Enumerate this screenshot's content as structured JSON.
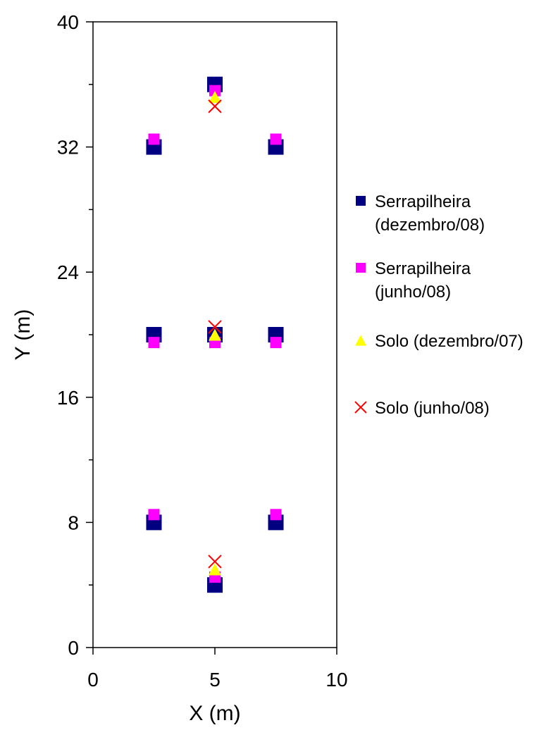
{
  "chart_data": {
    "type": "scatter",
    "title": "",
    "xlabel": "X (m)",
    "ylabel": "Y (m)",
    "xlim": [
      0,
      10
    ],
    "ylim": [
      0,
      40
    ],
    "x_ticks": [
      "0",
      "5",
      "10"
    ],
    "y_ticks": [
      "0",
      "8",
      "16",
      "24",
      "32",
      "40"
    ],
    "grid": false,
    "legend_position": "right",
    "series": [
      {
        "name": "Serrapilheira (dezembro/08)",
        "legend_lines": [
          "Serrapilheira",
          "(dezembro/08)"
        ],
        "marker": "square",
        "color": "#000080",
        "points": [
          {
            "x": 2.5,
            "y": 8
          },
          {
            "x": 7.5,
            "y": 8
          },
          {
            "x": 5,
            "y": 4
          },
          {
            "x": 2.5,
            "y": 20
          },
          {
            "x": 5,
            "y": 20
          },
          {
            "x": 7.5,
            "y": 20
          },
          {
            "x": 2.5,
            "y": 32
          },
          {
            "x": 7.5,
            "y": 32
          },
          {
            "x": 5,
            "y": 36
          }
        ]
      },
      {
        "name": "Serrapilheira (junho/08)",
        "legend_lines": [
          "Serrapilheira",
          "(junho/08)"
        ],
        "marker": "square",
        "color": "#ff00ff",
        "points": [
          {
            "x": 2.5,
            "y": 8.5
          },
          {
            "x": 7.5,
            "y": 8.5
          },
          {
            "x": 5,
            "y": 4.5
          },
          {
            "x": 2.5,
            "y": 19.5
          },
          {
            "x": 5,
            "y": 19.5
          },
          {
            "x": 7.5,
            "y": 19.5
          },
          {
            "x": 2.5,
            "y": 32.5
          },
          {
            "x": 7.5,
            "y": 32.5
          },
          {
            "x": 5,
            "y": 35.6
          }
        ]
      },
      {
        "name": "Solo (dezembro/07)",
        "legend_lines": [
          "Solo (dezembro/07)"
        ],
        "marker": "triangle",
        "color": "#ffff00",
        "points": [
          {
            "x": 5,
            "y": 5
          },
          {
            "x": 5,
            "y": 20
          },
          {
            "x": 5,
            "y": 35.2
          }
        ]
      },
      {
        "name": "Solo (junho/08)",
        "legend_lines": [
          "Solo (junho/08)"
        ],
        "marker": "x",
        "color": "#ff0000",
        "points": [
          {
            "x": 5,
            "y": 5.5
          },
          {
            "x": 5,
            "y": 20.5
          },
          {
            "x": 5,
            "y": 34.6
          }
        ]
      }
    ]
  }
}
